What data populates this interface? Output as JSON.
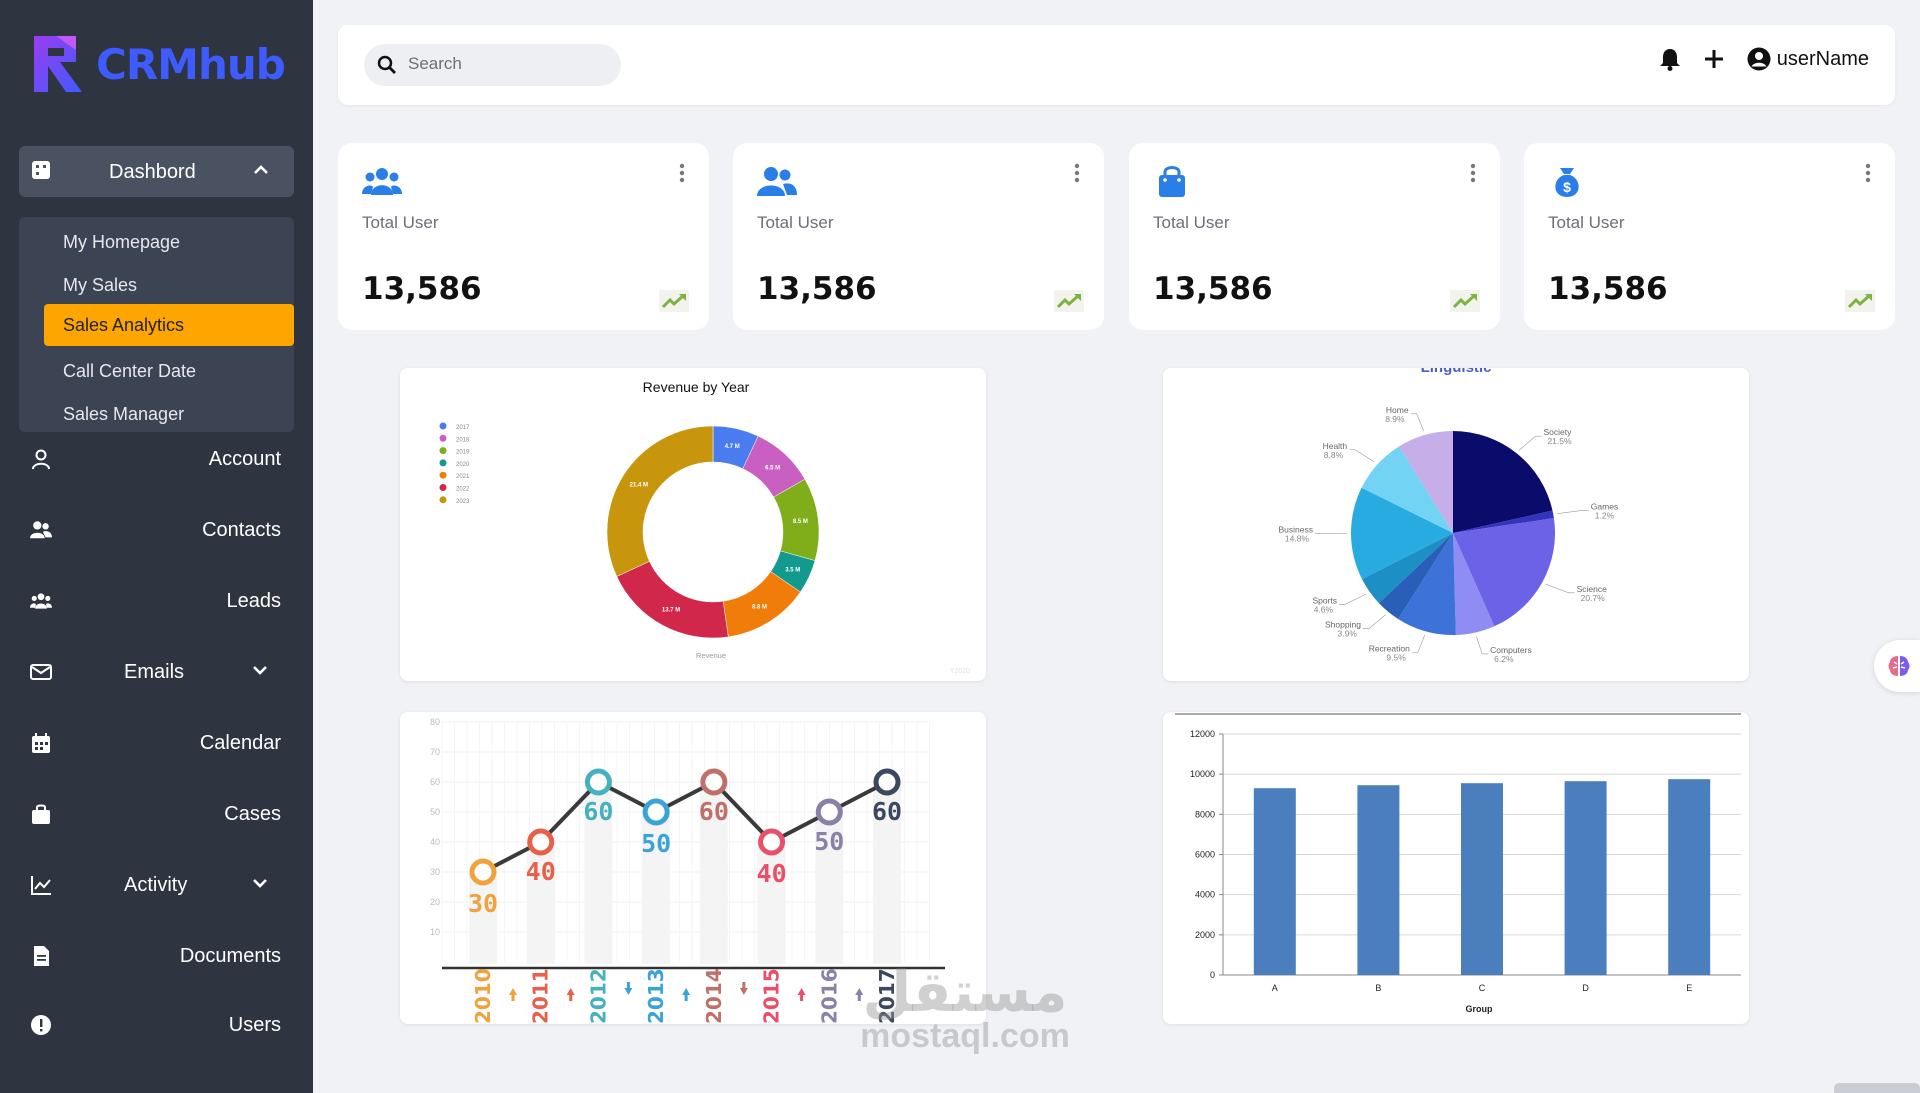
{
  "app": {
    "brand": "CRMhub"
  },
  "sidebar": {
    "dashboard_label": "Dashbord",
    "submenu": [
      "My Homepage",
      "My Sales",
      "Sales Analytics",
      "Call Center Date",
      "Sales Manager"
    ],
    "active_submenu": "Sales Analytics",
    "items": [
      {
        "label": "Account",
        "icon": "user-icon"
      },
      {
        "label": "Contacts",
        "icon": "contacts-icon"
      },
      {
        "label": "Leads",
        "icon": "users-group-icon"
      },
      {
        "label": "Emails",
        "icon": "envelope-icon"
      },
      {
        "label": "Calendar",
        "icon": "calendar-icon"
      },
      {
        "label": "Cases",
        "icon": "briefcase-icon"
      },
      {
        "label": "Activity",
        "icon": "chart-line-icon"
      },
      {
        "label": "Documents",
        "icon": "document-icon"
      },
      {
        "label": "Users",
        "icon": "alert-circle-icon"
      }
    ]
  },
  "header": {
    "search_placeholder": "Search",
    "username": "userName"
  },
  "stats": [
    {
      "title": "Total User",
      "value": "13,586",
      "icon": "users-icon"
    },
    {
      "title": "Total User",
      "value": "13,586",
      "icon": "user-friends-icon"
    },
    {
      "title": "Total User",
      "value": "13,586",
      "icon": "shopping-bag-icon"
    },
    {
      "title": "Total User",
      "value": "13,586",
      "icon": "money-bag-icon"
    }
  ],
  "colors": {
    "accent": "#ffa500",
    "sidebar": "#2e3440",
    "brand": "#3d5bff",
    "trend": "#7cb342"
  },
  "chart_data": [
    {
      "type": "pie",
      "title": "Revenue by Year",
      "xlabel": "Revenue",
      "footnote": "Y2020",
      "legend_position": "left",
      "categories": [
        "2017",
        "2018",
        "2019",
        "2020",
        "2021",
        "2022",
        "2023"
      ],
      "values": [
        4.7,
        6.5,
        8.5,
        3.5,
        8.8,
        13.7,
        21.4
      ],
      "value_labels": [
        "4.7 M",
        "6.5 M",
        "8.5 M",
        "3.5 M",
        "8.8 M",
        "13.7 M",
        "21.4 M"
      ],
      "colors": [
        "#4a7cf0",
        "#c95fc0",
        "#7fae1a",
        "#139a8e",
        "#f07d0a",
        "#d1274a",
        "#c8960c"
      ]
    },
    {
      "type": "pie",
      "title": "Linguistic",
      "slices": [
        {
          "label": "Society",
          "pct": "21.5%",
          "value": 21.5,
          "color": "#0b0b6b"
        },
        {
          "label": "Games",
          "pct": "1.2%",
          "value": 1.2,
          "color": "#3333bb"
        },
        {
          "label": "Science",
          "pct": "20.7%",
          "value": 20.7,
          "color": "#6b62e8"
        },
        {
          "label": "Computers",
          "pct": "6.2%",
          "value": 6.2,
          "color": "#8f8cf4"
        },
        {
          "label": "Recreation",
          "pct": "9.5%",
          "value": 9.5,
          "color": "#3d72d8"
        },
        {
          "label": "Shopping",
          "pct": "3.9%",
          "value": 3.9,
          "color": "#2a5fb8"
        },
        {
          "label": "Sports",
          "pct": "4.6%",
          "value": 4.6,
          "color": "#1c8fc4"
        },
        {
          "label": "Business",
          "pct": "14.8%",
          "value": 14.8,
          "color": "#27abe0"
        },
        {
          "label": "Health",
          "pct": "8.8%",
          "value": 8.8,
          "color": "#72d3f5"
        },
        {
          "label": "Home",
          "pct": "8.9%",
          "value": 8.9,
          "color": "#c6aee8"
        }
      ]
    },
    {
      "type": "line",
      "x": [
        "2010",
        "2011",
        "2012",
        "2013",
        "2014",
        "2015",
        "2016",
        "2017"
      ],
      "values": [
        30,
        40,
        60,
        50,
        60,
        40,
        50,
        60
      ],
      "ylim": [
        0,
        80
      ],
      "yticks": [
        "10",
        "20",
        "30",
        "40",
        "50",
        "60",
        "70",
        "80"
      ],
      "point_colors": [
        "#f0a23c",
        "#e8604a",
        "#45b0c0",
        "#3aa3d8",
        "#c0706a",
        "#e8506a",
        "#8a80a8",
        "#3a4860"
      ],
      "arrows": [
        "up",
        "up",
        "down",
        "up",
        "down",
        "up",
        "up",
        "up"
      ],
      "arrow_colors": [
        "#f0a23c",
        "#e8604a",
        "#3aa3d8",
        "#3aa3d8",
        "#c0706a",
        "#e8506a",
        "#8a80a8",
        "#3a4860"
      ]
    },
    {
      "type": "bar",
      "categories": [
        "A",
        "B",
        "C",
        "D",
        "E"
      ],
      "values": [
        9300,
        9450,
        9550,
        9650,
        9750
      ],
      "ylim": [
        0,
        12000
      ],
      "yticks": [
        "0",
        "2000",
        "4000",
        "6000",
        "8000",
        "10000",
        "12000"
      ],
      "xlabel": "Group",
      "color": "#4a7ebd"
    }
  ],
  "watermark": {
    "arabic": "مستقل",
    "latin": "mostaql.com"
  }
}
